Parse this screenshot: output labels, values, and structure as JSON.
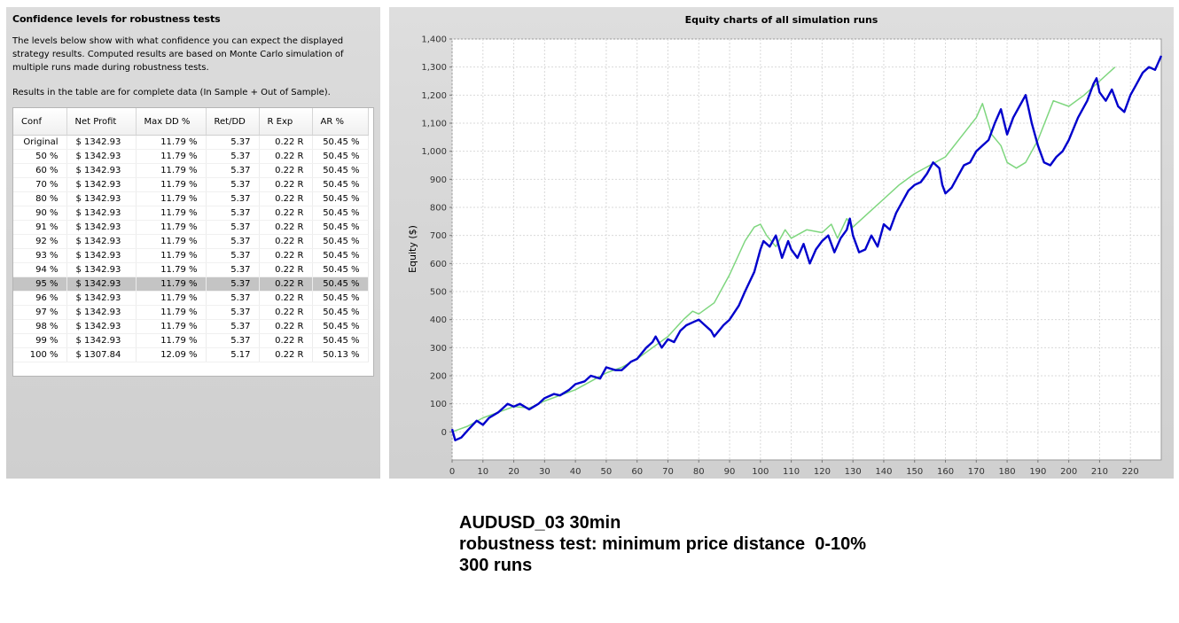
{
  "left_panel": {
    "title": "Confidence levels for robustness tests",
    "description": "The levels below show with what confidence you can expect the displayed strategy results. Computed results are based on Monte Carlo simulation of multiple runs made during robustness tests.",
    "note": "Results in the table are for complete data (In Sample + Out of Sample).",
    "table": {
      "headers": [
        "Conf",
        "Net Profit",
        "Max DD %",
        "Ret/DD",
        "R Exp",
        "AR %"
      ],
      "selected_row": 10,
      "rows": [
        [
          "Original",
          "$ 1342.93",
          "11.79 %",
          "5.37",
          "0.22 R",
          "50.45 %"
        ],
        [
          "50 %",
          "$ 1342.93",
          "11.79 %",
          "5.37",
          "0.22 R",
          "50.45 %"
        ],
        [
          "60 %",
          "$ 1342.93",
          "11.79 %",
          "5.37",
          "0.22 R",
          "50.45 %"
        ],
        [
          "70 %",
          "$ 1342.93",
          "11.79 %",
          "5.37",
          "0.22 R",
          "50.45 %"
        ],
        [
          "80 %",
          "$ 1342.93",
          "11.79 %",
          "5.37",
          "0.22 R",
          "50.45 %"
        ],
        [
          "90 %",
          "$ 1342.93",
          "11.79 %",
          "5.37",
          "0.22 R",
          "50.45 %"
        ],
        [
          "91 %",
          "$ 1342.93",
          "11.79 %",
          "5.37",
          "0.22 R",
          "50.45 %"
        ],
        [
          "92 %",
          "$ 1342.93",
          "11.79 %",
          "5.37",
          "0.22 R",
          "50.45 %"
        ],
        [
          "93 %",
          "$ 1342.93",
          "11.79 %",
          "5.37",
          "0.22 R",
          "50.45 %"
        ],
        [
          "94 %",
          "$ 1342.93",
          "11.79 %",
          "5.37",
          "0.22 R",
          "50.45 %"
        ],
        [
          "95 %",
          "$ 1342.93",
          "11.79 %",
          "5.37",
          "0.22 R",
          "50.45 %"
        ],
        [
          "96 %",
          "$ 1342.93",
          "11.79 %",
          "5.37",
          "0.22 R",
          "50.45 %"
        ],
        [
          "97 %",
          "$ 1342.93",
          "11.79 %",
          "5.37",
          "0.22 R",
          "50.45 %"
        ],
        [
          "98 %",
          "$ 1342.93",
          "11.79 %",
          "5.37",
          "0.22 R",
          "50.45 %"
        ],
        [
          "99 %",
          "$ 1342.93",
          "11.79 %",
          "5.37",
          "0.22 R",
          "50.45 %"
        ],
        [
          "100 %",
          "$ 1307.84",
          "12.09 %",
          "5.17",
          "0.22 R",
          "50.13 %"
        ]
      ]
    }
  },
  "chart_data": {
    "type": "line",
    "title": "Equity charts of all simulation runs",
    "xlabel": "",
    "ylabel": "Equity ($)",
    "xlim": [
      0,
      230
    ],
    "ylim": [
      -100,
      1400
    ],
    "xticks": [
      0,
      10,
      20,
      30,
      40,
      50,
      60,
      70,
      80,
      90,
      100,
      110,
      120,
      130,
      140,
      150,
      160,
      170,
      180,
      190,
      200,
      210,
      220
    ],
    "yticks": [
      0,
      100,
      200,
      300,
      400,
      500,
      600,
      700,
      800,
      900,
      1000,
      1100,
      1200,
      1300,
      1400
    ],
    "ytick_labels": [
      "0",
      "100",
      "200",
      "300",
      "400",
      "500",
      "600",
      "700",
      "800",
      "900",
      "1,000",
      "1,100",
      "1,200",
      "1,300",
      "1,400"
    ],
    "grid": true,
    "legend": "none",
    "series": [
      {
        "color": "#7ed67e",
        "x": [
          0,
          5,
          10,
          15,
          20,
          25,
          30,
          35,
          40,
          45,
          50,
          55,
          60,
          65,
          70,
          75,
          78,
          80,
          85,
          90,
          95,
          98,
          100,
          102,
          105,
          108,
          110,
          115,
          120,
          123,
          125,
          128,
          130,
          135,
          140,
          145,
          150,
          155,
          160,
          165,
          170,
          172,
          175,
          178,
          180,
          183,
          186,
          190,
          195,
          200,
          205,
          210,
          215
        ],
        "y": [
          0,
          20,
          50,
          70,
          90,
          85,
          110,
          130,
          150,
          180,
          210,
          230,
          260,
          300,
          340,
          400,
          430,
          420,
          460,
          560,
          680,
          730,
          740,
          700,
          660,
          720,
          690,
          720,
          710,
          740,
          690,
          760,
          730,
          780,
          830,
          880,
          920,
          950,
          980,
          1050,
          1120,
          1170,
          1060,
          1020,
          960,
          940,
          960,
          1040,
          1180,
          1160,
          1200,
          1250,
          1300
        ]
      },
      {
        "color": "#0000cc",
        "x": [
          0,
          1,
          3,
          5,
          8,
          10,
          12,
          15,
          18,
          20,
          22,
          25,
          28,
          30,
          33,
          35,
          38,
          40,
          43,
          45,
          48,
          50,
          53,
          55,
          58,
          60,
          63,
          65,
          66,
          68,
          70,
          72,
          74,
          76,
          78,
          80,
          82,
          84,
          85,
          88,
          90,
          93,
          95,
          98,
          100,
          101,
          103,
          105,
          107,
          109,
          110,
          112,
          114,
          116,
          118,
          120,
          122,
          124,
          126,
          128,
          129,
          130,
          132,
          134,
          136,
          138,
          140,
          142,
          144,
          146,
          148,
          150,
          152,
          154,
          156,
          158,
          159,
          160,
          162,
          164,
          166,
          168,
          170,
          172,
          174,
          176,
          178,
          180,
          182,
          184,
          186,
          188,
          190,
          192,
          194,
          196,
          198,
          200,
          203,
          206,
          208,
          209,
          210,
          212,
          214,
          216,
          218,
          220,
          222,
          224,
          226,
          228,
          230
        ],
        "y": [
          10,
          -30,
          -20,
          5,
          40,
          25,
          50,
          70,
          100,
          90,
          100,
          80,
          100,
          120,
          135,
          130,
          150,
          170,
          180,
          200,
          190,
          230,
          220,
          220,
          250,
          260,
          300,
          320,
          340,
          300,
          330,
          320,
          360,
          380,
          390,
          400,
          380,
          360,
          340,
          380,
          400,
          450,
          500,
          570,
          650,
          680,
          660,
          700,
          620,
          680,
          650,
          620,
          670,
          600,
          650,
          680,
          700,
          640,
          690,
          720,
          760,
          700,
          640,
          650,
          700,
          660,
          740,
          720,
          780,
          820,
          860,
          880,
          890,
          920,
          960,
          940,
          880,
          850,
          870,
          910,
          950,
          960,
          1000,
          1020,
          1040,
          1100,
          1150,
          1060,
          1120,
          1160,
          1200,
          1100,
          1020,
          960,
          950,
          980,
          1000,
          1040,
          1120,
          1180,
          1240,
          1260,
          1210,
          1180,
          1220,
          1160,
          1140,
          1200,
          1240,
          1280,
          1300,
          1290,
          1340
        ]
      }
    ]
  },
  "caption": {
    "line1": "AUDUSD_03 30min",
    "line2": "robustness test: minimum price distance  0-10%",
    "line3": "300 runs"
  }
}
